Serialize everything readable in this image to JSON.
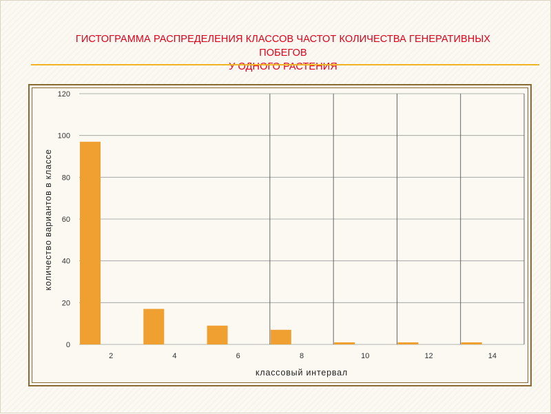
{
  "slide": {
    "title": "ГИСТОГРАММА РАСПРЕДЕЛЕНИЯ КЛАССОВ ЧАСТОТ КОЛИЧЕСТВА ГЕНЕРАТИВНЫХ\nПОБЕГОВ\nУ ОДНОГО РАСТЕНИЯ",
    "accent_color": "#e1001a",
    "rule_color": "#f0b323"
  },
  "chart_data": {
    "type": "bar",
    "categories": [
      "2",
      "4",
      "6",
      "8",
      "10",
      "12",
      "14"
    ],
    "values": [
      97,
      17,
      9,
      7,
      1,
      1,
      1
    ],
    "xlabel": "классовый интервал",
    "ylabel": "количество вариантов в классе",
    "ylim": [
      0,
      120
    ],
    "yticks": [
      0,
      20,
      40,
      60,
      80,
      100,
      120
    ],
    "grid": "horizontal gridlines at each y tick; vertical dividers between categories in the right half",
    "bar_color": "#f0a030"
  }
}
